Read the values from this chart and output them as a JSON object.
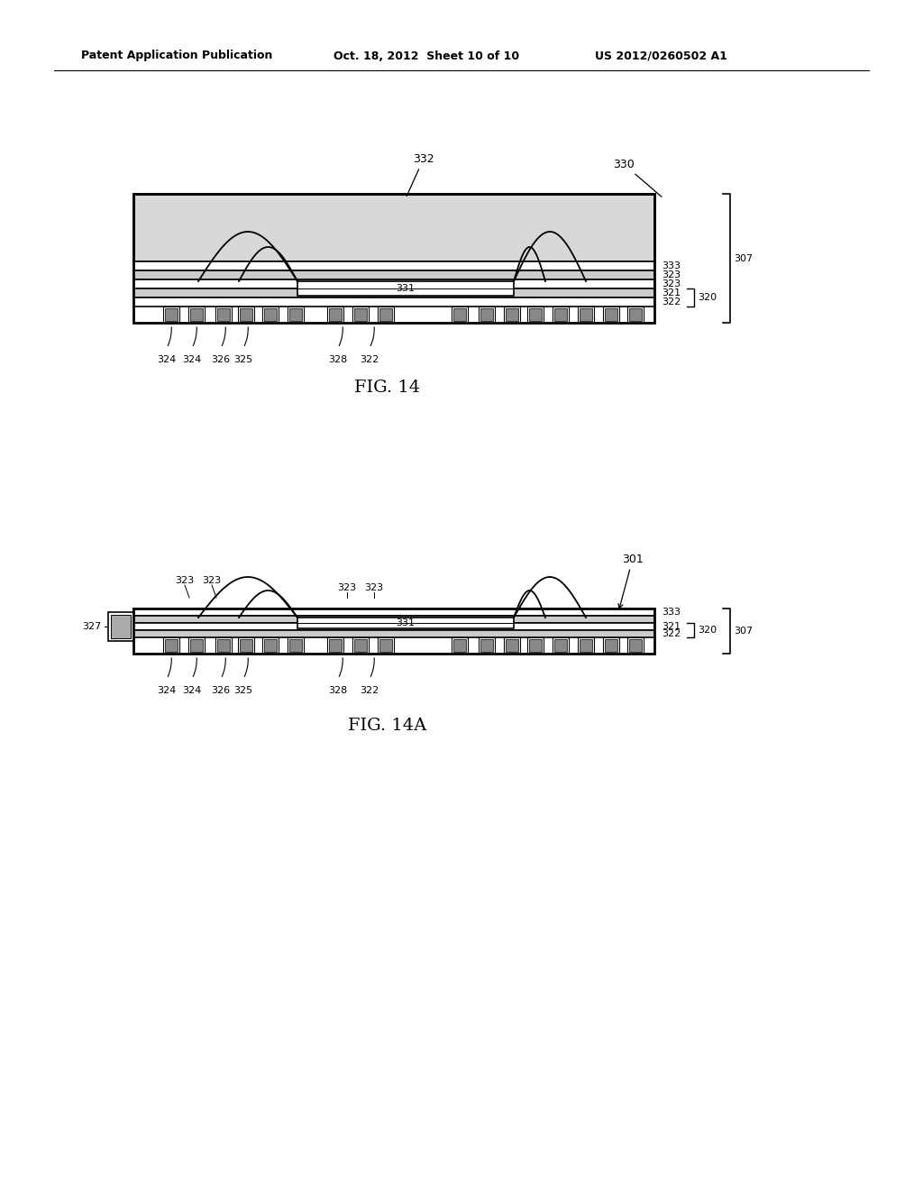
{
  "bg_color": "#ffffff",
  "line_color": "#000000",
  "header_left": "Patent Application Publication",
  "header_mid": "Oct. 18, 2012  Sheet 10 of 10",
  "header_right": "US 2012/0260502 A1",
  "fig14_title": "FIG. 14",
  "fig14a_title": "FIG. 14A",
  "encap_fill": "#d8d8d8",
  "pad_fill": "#888888",
  "layer_fill": "#aaaaaa",
  "white": "#ffffff"
}
